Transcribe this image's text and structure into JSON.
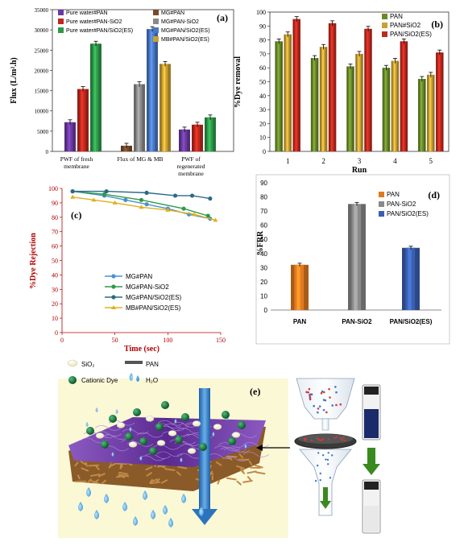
{
  "colors": {
    "purple": "#6a3aa0",
    "red": "#c0291e",
    "green": "#2f9a4a",
    "grey": "#8a8a8a",
    "blue": "#4a78c4",
    "gold": "#c9a032",
    "brown": "#7a4a28",
    "olive": "#6a8a2a",
    "darkred": "#b00000",
    "orange": "#e07a20",
    "teal": "#2c6a86",
    "yellow": "#e0b020"
  },
  "chart_data": [
    {
      "panel": "(a)",
      "type": "bar",
      "ylabel": "Flux (L/m².h)",
      "ylim": [
        0,
        35000
      ],
      "yticks": [
        "0",
        "5000",
        "10000",
        "15000",
        "20000",
        "25000",
        "30000",
        "35000"
      ],
      "groups": [
        "PWF of fresh membrane",
        "Flux of MG & MB",
        "PWF of regenerated membrane"
      ],
      "group_labels": [
        [
          "PWF of fresh",
          "membrane"
        ],
        [
          "Flux of MG & MB"
        ],
        [
          "PWF of",
          "regenerated",
          "membrane"
        ]
      ],
      "series": [
        {
          "name": "Pure water#PAN",
          "color": "#6a3aa0",
          "values": [
            7200,
            null,
            5400
          ]
        },
        {
          "name": "Pure water#PAN-SiO2",
          "color": "#c0291e",
          "values": [
            15400,
            null,
            6600
          ]
        },
        {
          "name": "Pure water#PAN/SiO2(ES)",
          "color": "#2f9a4a",
          "values": [
            26600,
            null,
            8400
          ]
        },
        {
          "name": "MG#PAN",
          "color": "#7a4a28",
          "values": [
            null,
            1400,
            null
          ]
        },
        {
          "name": "MG#PAN-SiO2",
          "color": "#8a8a8a",
          "values": [
            null,
            16600,
            null
          ]
        },
        {
          "name": "MG#PAN/SiO2(ES)",
          "color": "#4a78c4",
          "values": [
            null,
            30200,
            null
          ]
        },
        {
          "name": "MB#PAN/SiO2(ES)",
          "color": "#c9a032",
          "values": [
            null,
            21600,
            null
          ]
        }
      ]
    },
    {
      "panel": "(b)",
      "type": "bar",
      "xlabel": "Run",
      "ylabel": "%Dye removal",
      "ylim": [
        0,
        100
      ],
      "yticks": [
        "0",
        "10",
        "20",
        "30",
        "40",
        "50",
        "60",
        "70",
        "80",
        "90",
        "100"
      ],
      "categories": [
        "1",
        "2",
        "3",
        "4",
        "5"
      ],
      "series": [
        {
          "name": "PAN",
          "color": "#6a8a2a",
          "values": [
            79,
            67,
            61,
            60,
            52
          ]
        },
        {
          "name": "PAN#SiO2",
          "color": "#c9a032",
          "values": [
            84,
            75,
            70,
            65,
            55
          ]
        },
        {
          "name": "PAN/SiO2(ES)",
          "color": "#c0291e",
          "values": [
            95,
            92,
            88,
            79,
            71
          ]
        }
      ]
    },
    {
      "panel": "(c)",
      "type": "line",
      "xlabel": "Time (sec)",
      "ylabel": "%Dye Rejection",
      "xlim": [
        0,
        150
      ],
      "ylim": [
        0,
        100
      ],
      "xticks": [
        "0",
        "50",
        "100",
        "150"
      ],
      "yticks": [
        "0",
        "10",
        "20",
        "30",
        "40",
        "50",
        "60",
        "70",
        "80",
        "90",
        "100"
      ],
      "series": [
        {
          "name": "MG#PAN",
          "color": "#4a90d0",
          "marker": "circle",
          "x": [
            10,
            40,
            60,
            80,
            100,
            120,
            140
          ],
          "y": [
            98,
            95,
            92,
            89,
            86,
            82,
            79
          ]
        },
        {
          "name": "MG#PAN-SiO2",
          "color": "#2f9a4a",
          "marker": "circle",
          "x": [
            10,
            40,
            75,
            115,
            138
          ],
          "y": [
            98,
            96,
            92,
            86,
            81
          ]
        },
        {
          "name": "MG#PAN/SiO2(ES)",
          "color": "#2c6a86",
          "marker": "circle",
          "x": [
            10,
            42,
            80,
            107,
            123,
            140
          ],
          "y": [
            98,
            98,
            97,
            95,
            95,
            93
          ]
        },
        {
          "name": "MB#PAN/SiO2(ES)",
          "color": "#e0b020",
          "marker": "triangle",
          "x": [
            10,
            30,
            50,
            75,
            100,
            125,
            145
          ],
          "y": [
            94,
            92,
            90,
            87,
            85,
            82,
            78
          ]
        }
      ]
    },
    {
      "panel": "(d)",
      "type": "bar",
      "ylabel": "%FRR",
      "ylim": [
        0,
        90
      ],
      "yticks": [
        "0",
        "10",
        "20",
        "30",
        "40",
        "50",
        "60",
        "70",
        "80",
        "90"
      ],
      "categories": [
        "PAN",
        "PAN-SiO2",
        "PAN/SiO2(ES)"
      ],
      "series": [
        {
          "name": "PAN",
          "color": "#e07a20",
          "values": [
            32,
            null,
            null
          ]
        },
        {
          "name": "PAN-SiO2",
          "color": "#8a8a8a",
          "values": [
            null,
            75,
            null
          ]
        },
        {
          "name": "PAN/SiO2(ES)",
          "color": "#3a60b0",
          "values": [
            null,
            null,
            44
          ]
        }
      ]
    }
  ],
  "schematic": {
    "panel_label": "(e)",
    "legend": {
      "sio2": "SiO₂",
      "pan": "PAN",
      "dye": "Cationic Dye",
      "water": "H₂O"
    }
  }
}
